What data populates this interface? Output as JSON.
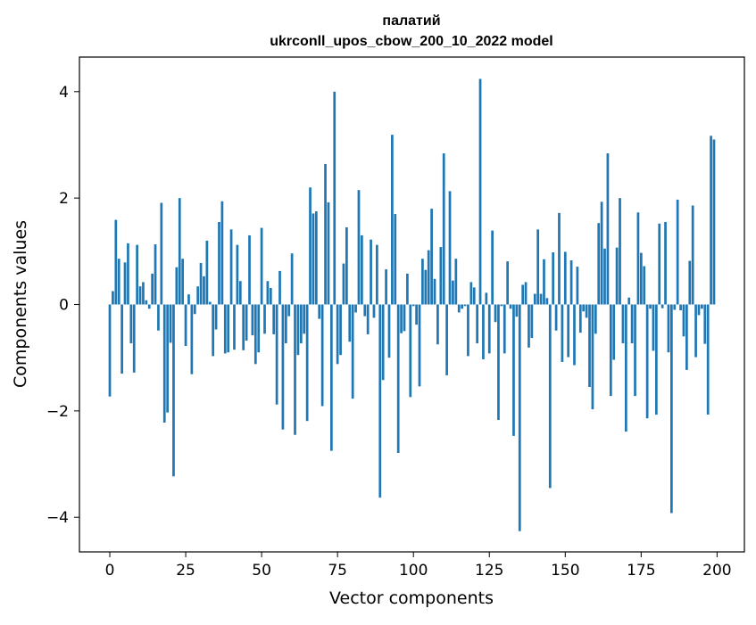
{
  "chart_data": {
    "type": "bar",
    "title_line1": "палатий",
    "title_line2": "ukrconll_upos_cbow_200_10_2022 model",
    "xlabel": "Vector components",
    "ylabel": "Components values",
    "xlim": [
      -10,
      209
    ],
    "ylim": [
      -4.65,
      4.65
    ],
    "xticks": [
      0,
      25,
      50,
      75,
      100,
      125,
      150,
      175,
      200
    ],
    "xtick_labels": [
      "0",
      "25",
      "50",
      "75",
      "100",
      "125",
      "150",
      "175",
      "200"
    ],
    "yticks": [
      -4,
      -2,
      0,
      2,
      4
    ],
    "ytick_labels": [
      "−4",
      "−2",
      "0",
      "2",
      "4"
    ],
    "grid": false,
    "bar_color": "#1f77b4",
    "x": [
      0,
      1,
      2,
      3,
      4,
      5,
      6,
      7,
      8,
      9,
      10,
      11,
      12,
      13,
      14,
      15,
      16,
      17,
      18,
      19,
      20,
      21,
      22,
      23,
      24,
      25,
      26,
      27,
      28,
      29,
      30,
      31,
      32,
      33,
      34,
      35,
      36,
      37,
      38,
      39,
      40,
      41,
      42,
      43,
      44,
      45,
      46,
      47,
      48,
      49,
      50,
      51,
      52,
      53,
      54,
      55,
      56,
      57,
      58,
      59,
      60,
      61,
      62,
      63,
      64,
      65,
      66,
      67,
      68,
      69,
      70,
      71,
      72,
      73,
      74,
      75,
      76,
      77,
      78,
      79,
      80,
      81,
      82,
      83,
      84,
      85,
      86,
      87,
      88,
      89,
      90,
      91,
      92,
      93,
      94,
      95,
      96,
      97,
      98,
      99,
      100,
      101,
      102,
      103,
      104,
      105,
      106,
      107,
      108,
      109,
      110,
      111,
      112,
      113,
      114,
      115,
      116,
      117,
      118,
      119,
      120,
      121,
      122,
      123,
      124,
      125,
      126,
      127,
      128,
      129,
      130,
      131,
      132,
      133,
      134,
      135,
      136,
      137,
      138,
      139,
      140,
      141,
      142,
      143,
      144,
      145,
      146,
      147,
      148,
      149,
      150,
      151,
      152,
      153,
      154,
      155,
      156,
      157,
      158,
      159,
      160,
      161,
      162,
      163,
      164,
      165,
      166,
      167,
      168,
      169,
      170,
      171,
      172,
      173,
      174,
      175,
      176,
      177,
      178,
      179,
      180,
      181,
      182,
      183,
      184,
      185,
      186,
      187,
      188,
      189,
      190,
      191,
      192,
      193,
      194,
      195,
      196,
      197,
      198,
      199
    ],
    "values": [
      -1.73,
      0.25,
      1.59,
      0.86,
      -1.3,
      0.79,
      1.15,
      -0.73,
      -1.28,
      1.12,
      0.34,
      0.42,
      0.08,
      -0.08,
      0.58,
      1.13,
      -0.49,
      1.91,
      -2.22,
      -2.03,
      -0.72,
      -3.23,
      0.7,
      2.0,
      0.86,
      -0.78,
      0.19,
      -1.31,
      -0.18,
      0.34,
      0.78,
      0.53,
      1.2,
      0.05,
      -0.97,
      -0.47,
      1.55,
      1.94,
      -0.92,
      -0.9,
      1.41,
      -0.85,
      1.12,
      0.44,
      -0.86,
      -0.68,
      1.3,
      -0.58,
      -1.12,
      -0.9,
      1.44,
      -0.55,
      0.44,
      0.31,
      -0.56,
      -1.88,
      0.63,
      -2.35,
      -0.73,
      -0.22,
      0.96,
      -2.45,
      -0.95,
      -0.73,
      -0.55,
      -2.19,
      2.2,
      1.71,
      1.75,
      -0.27,
      -1.91,
      2.64,
      1.92,
      -2.75,
      4.0,
      -1.12,
      -0.95,
      0.77,
      1.45,
      -0.7,
      -1.77,
      -0.15,
      2.15,
      1.3,
      -0.22,
      -0.56,
      1.22,
      -0.25,
      1.12,
      -3.63,
      -1.42,
      0.66,
      -1.0,
      3.19,
      1.7,
      -2.79,
      -0.54,
      -0.5,
      0.58,
      -1.74,
      -0.03,
      -0.38,
      -1.54,
      0.86,
      0.65,
      1.02,
      1.8,
      0.48,
      -0.75,
      1.08,
      2.84,
      -1.33,
      2.13,
      0.45,
      0.86,
      -0.15,
      -0.08,
      -0.03,
      -0.97,
      0.42,
      0.32,
      -0.73,
      4.24,
      -1.03,
      0.22,
      -0.92,
      1.39,
      -0.33,
      -2.17,
      -0.03,
      -0.92,
      0.81,
      -0.08,
      -2.47,
      -0.23,
      -4.26,
      0.37,
      0.42,
      -0.81,
      -0.63,
      0.2,
      1.41,
      0.2,
      0.85,
      0.12,
      -3.45,
      0.98,
      -0.49,
      1.72,
      -1.08,
      0.99,
      -0.99,
      0.83,
      -1.14,
      0.71,
      -0.53,
      -0.13,
      -0.25,
      -1.55,
      -1.97,
      -0.55,
      1.53,
      1.93,
      1.05,
      2.84,
      -1.72,
      -1.04,
      1.07,
      2.0,
      -0.73,
      -2.39,
      0.13,
      -0.73,
      -1.72,
      1.73,
      0.97,
      0.72,
      -2.14,
      -0.08,
      -0.87,
      -2.07,
      1.52,
      -0.07,
      1.55,
      -0.9,
      -3.92,
      -0.1,
      1.97,
      -0.11,
      -0.6,
      -1.23,
      0.82,
      1.86,
      -0.99,
      -0.2,
      -0.08,
      -0.74,
      -2.07,
      3.17,
      3.1
    ]
  }
}
